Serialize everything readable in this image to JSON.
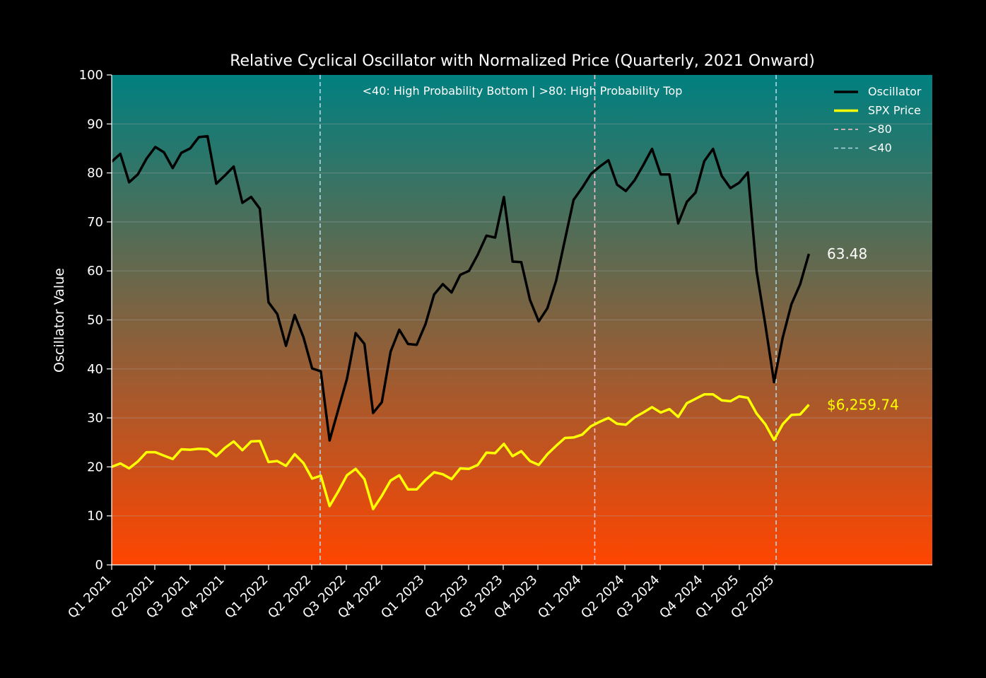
{
  "chart_data": {
    "type": "line",
    "title": "Relative Cyclical Oscillator with Normalized Price (Quarterly, 2021 Onward)",
    "xlabel": "",
    "ylabel": "Oscillator Value",
    "ylim": [
      0,
      100
    ],
    "yticks": [
      0,
      10,
      20,
      30,
      40,
      50,
      60,
      70,
      80,
      90,
      100
    ],
    "x_tick_labels": [
      "Q1 2021",
      "Q2 2021",
      "Q3 2021",
      "Q4 2021",
      "Q1 2022",
      "Q2 2022",
      "Q3 2022",
      "Q4 2022",
      "Q1 2023",
      "Q2 2023",
      "Q3 2023",
      "Q4 2023",
      "Q1 2024",
      "Q2 2024",
      "Q3 2024",
      "Q4 2024",
      "Q1 2025",
      "Q2 2025"
    ],
    "annotation": "<40: High Probability Bottom | >80: High Probability Top",
    "background_gradient": {
      "top": "#008080",
      "bottom": "#ff4500"
    },
    "grid": true,
    "legend_position": "top-right",
    "legend": [
      {
        "label": "Oscillator",
        "color": "#000000",
        "style": "solid"
      },
      {
        "label": "SPX Price",
        "color": "#ffff00",
        "style": "solid"
      },
      {
        "label": ">80",
        "color": "#ffc0cb",
        "style": "dashed"
      },
      {
        "label": "<40",
        "color": "#add8e6",
        "style": "dashed"
      }
    ],
    "series": [
      {
        "name": "Oscillator",
        "color": "#000000",
        "values": [
          82.3,
          83.9,
          78.1,
          79.7,
          82.9,
          85.3,
          84.2,
          81.0,
          84.1,
          85.0,
          87.3,
          87.5,
          77.8,
          79.5,
          81.3,
          73.9,
          75.1,
          72.7,
          53.6,
          51.2,
          44.7,
          51.0,
          46.5,
          40.1,
          39.5,
          25.4,
          31.7,
          38.0,
          47.3,
          45.1,
          31.0,
          33.2,
          43.5,
          48.0,
          45.1,
          44.9,
          49.1,
          55.2,
          57.3,
          55.6,
          59.2,
          60.0,
          63.3,
          67.2,
          66.8,
          75.1,
          61.9,
          61.8,
          54.1,
          49.7,
          52.4,
          58.0,
          66.3,
          74.5,
          77.0,
          79.8,
          81.3,
          82.6,
          77.6,
          76.3,
          78.5,
          81.6,
          84.9,
          79.7,
          79.7,
          69.7,
          74.1,
          76.0,
          82.4,
          84.9,
          79.4,
          76.9,
          78.0,
          80.1,
          60.0,
          49.0,
          37.3,
          46.4,
          53.2,
          57.3,
          63.48
        ]
      },
      {
        "name": "SPX Price",
        "color": "#ffff00",
        "values": [
          20.0,
          20.7,
          19.7,
          21.1,
          23.0,
          23.0,
          22.3,
          21.6,
          23.6,
          23.5,
          23.7,
          23.6,
          22.2,
          23.9,
          25.2,
          23.4,
          25.2,
          25.3,
          21.0,
          21.2,
          20.2,
          22.6,
          20.8,
          17.6,
          18.2,
          12.0,
          15.0,
          18.3,
          19.6,
          17.5,
          11.4,
          14.1,
          17.2,
          18.3,
          15.4,
          15.4,
          17.3,
          18.9,
          18.5,
          17.5,
          19.7,
          19.6,
          20.4,
          22.9,
          22.8,
          24.7,
          22.2,
          23.2,
          21.2,
          20.4,
          22.6,
          24.3,
          25.9,
          26.0,
          26.6,
          28.3,
          29.2,
          30.0,
          28.8,
          28.6,
          30.1,
          31.1,
          32.2,
          31.1,
          31.8,
          30.2,
          33.0,
          33.9,
          34.8,
          34.8,
          33.6,
          33.4,
          34.4,
          34.1,
          30.9,
          28.7,
          25.5,
          28.7,
          30.6,
          30.7,
          32.7
        ]
      }
    ],
    "vertical_lines": [
      {
        "label": "<40",
        "x_index": 24,
        "color": "#add8e6"
      },
      {
        "label": ">80",
        "x_index": 56,
        "color": "#ffc0cb"
      },
      {
        "label": "<40",
        "x_index": 76,
        "color": "#add8e6"
      }
    ],
    "end_labels": [
      {
        "text": "63.48",
        "color": "#ffffff"
      },
      {
        "text": "$6,259.74",
        "color": "#ffff00"
      }
    ]
  }
}
